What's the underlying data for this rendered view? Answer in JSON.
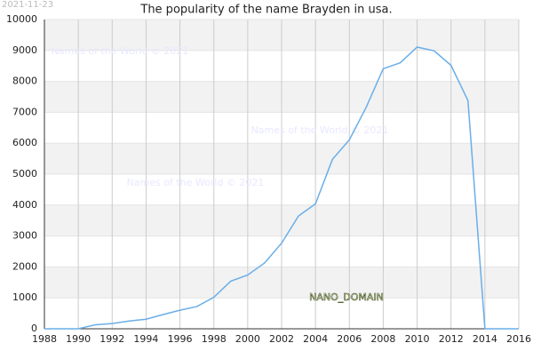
{
  "chart_data": {
    "type": "line",
    "title": "The popularity of the name Brayden in usa.",
    "date": "2021-11-23",
    "watermarks": [
      "Names of the World © 2021",
      "Names of the World © 2021",
      "Names of the World © 2021"
    ],
    "domain_label": "NANO_DOMAIN",
    "x": [
      1988,
      1989,
      1990,
      1991,
      1992,
      1993,
      1994,
      1995,
      1996,
      1997,
      1998,
      1999,
      2000,
      2001,
      2002,
      2003,
      2004,
      2005,
      2006,
      2007,
      2008,
      2009,
      2010,
      2011,
      2012,
      2013,
      2014,
      2015,
      2016
    ],
    "series": [
      {
        "color": "#6aaee8",
        "values": [
          0,
          0,
          0,
          130,
          170,
          250,
          310,
          460,
          600,
          720,
          1020,
          1540,
          1740,
          2130,
          2770,
          3650,
          4040,
          5480,
          6110,
          7170,
          8410,
          8600,
          9110,
          8990,
          8520,
          7380,
          0,
          0,
          0
        ]
      }
    ],
    "xlim": [
      1988,
      2016
    ],
    "xticks": [
      1988,
      1990,
      1992,
      1994,
      1996,
      1998,
      2000,
      2002,
      2004,
      2006,
      2008,
      2010,
      2012,
      2014,
      2016
    ],
    "ylim": [
      0,
      10000
    ],
    "yticks": [
      0,
      1000,
      2000,
      3000,
      4000,
      5000,
      6000,
      7000,
      8000,
      9000,
      10000
    ],
    "grid": true
  }
}
